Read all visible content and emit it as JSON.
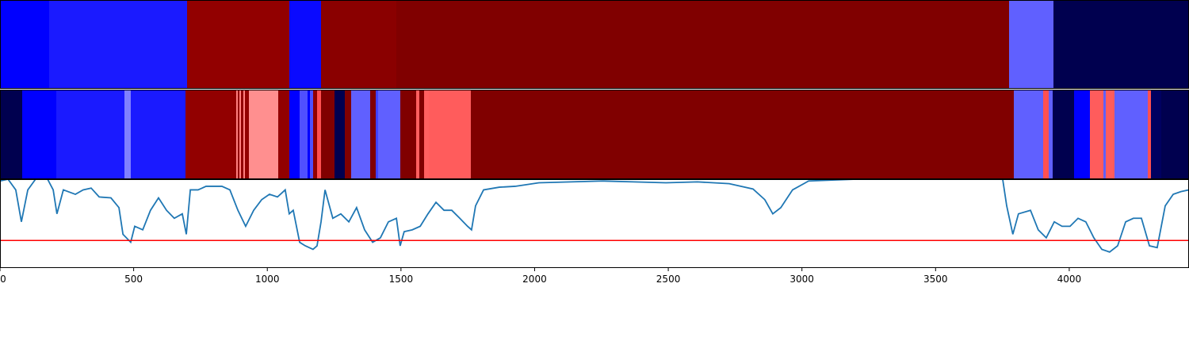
{
  "chart_data": [
    {
      "type": "bands",
      "edges": [
        0,
        184,
        700,
        1082,
        1201,
        1483,
        3775,
        3941,
        4448
      ],
      "colors": [
        "#0000ff",
        "#1a1aff",
        "#920000",
        "#0a0aff",
        "#8a0000",
        "#800000",
        "#6060ff",
        "#00004f"
      ]
    },
    {
      "type": "bands",
      "edges": [
        0,
        83,
        211,
        466,
        489,
        694,
        884,
        890,
        895,
        901,
        910,
        916,
        931,
        1041,
        1082,
        1121,
        1150,
        1159,
        1171,
        1186,
        1201,
        1251,
        1290,
        1314,
        1385,
        1406,
        1414,
        1497,
        1557,
        1569,
        1586,
        1604,
        1761,
        3792,
        3902,
        3923,
        3938,
        4018,
        4077,
        4128,
        4136,
        4169,
        4294,
        4305,
        4344,
        4448
      ],
      "colors": [
        "#00004f",
        "#0000ff",
        "#1a1aff",
        "#8080ff",
        "#1a1aff",
        "#920000",
        "#ff8080",
        "#920000",
        "#ff8080",
        "#920000",
        "#ff8080",
        "#920000",
        "#ff8f8f",
        "#920000",
        "#0000ff",
        "#5050ff",
        "#0000ff",
        "#5050ff",
        "#920000",
        "#ff5050",
        "#800000",
        "#00004f",
        "#800000",
        "#6060ff",
        "#800000",
        "#4040ff",
        "#6060ff",
        "#800000",
        "#ff6060",
        "#800000",
        "#ff6060",
        "#ff5c5c",
        "#800000",
        "#6060ff",
        "#ff5050",
        "#6060ff",
        "#00004f",
        "#0000ff",
        "#ff5c5c",
        "#6060ff",
        "#ff5c5c",
        "#6060ff",
        "#ff5050",
        "#000060",
        "#00004f"
      ]
    },
    {
      "type": "line",
      "xlim": [
        0,
        4448
      ],
      "ylim": [
        0,
        1
      ],
      "xticks": [
        0,
        500,
        1000,
        1500,
        2000,
        2500,
        3000,
        3500,
        4000
      ],
      "color": "#1f77b4",
      "threshold": 0.31,
      "threshold_color": "#ff0000",
      "x": [
        0,
        30,
        59,
        80,
        104,
        133,
        178,
        199,
        213,
        237,
        282,
        311,
        341,
        371,
        415,
        445,
        460,
        489,
        504,
        534,
        563,
        593,
        623,
        652,
        682,
        697,
        712,
        741,
        771,
        830,
        860,
        890,
        919,
        949,
        979,
        1008,
        1038,
        1067,
        1082,
        1097,
        1121,
        1142,
        1171,
        1186,
        1201,
        1216,
        1245,
        1275,
        1305,
        1334,
        1364,
        1394,
        1423,
        1453,
        1483,
        1497,
        1512,
        1542,
        1572,
        1601,
        1631,
        1661,
        1690,
        1720,
        1749,
        1764,
        1779,
        1809,
        1868,
        1927,
        2016,
        2135,
        2254,
        2372,
        2491,
        2609,
        2728,
        2817,
        2861,
        2891,
        2921,
        2965,
        3025,
        3202,
        3558,
        3751,
        3766,
        3789,
        3810,
        3855,
        3884,
        3914,
        3944,
        3973,
        4003,
        4033,
        4062,
        4092,
        4122,
        4151,
        4181,
        4211,
        4240,
        4270,
        4300,
        4329,
        4359,
        4389,
        4418,
        4448
      ],
      "values": [
        0.98,
        1.0,
        0.88,
        0.52,
        0.88,
        1.0,
        1.0,
        0.88,
        0.61,
        0.88,
        0.83,
        0.88,
        0.9,
        0.8,
        0.79,
        0.68,
        0.38,
        0.29,
        0.47,
        0.43,
        0.65,
        0.79,
        0.65,
        0.56,
        0.61,
        0.38,
        0.88,
        0.88,
        0.92,
        0.92,
        0.88,
        0.65,
        0.47,
        0.65,
        0.77,
        0.83,
        0.8,
        0.88,
        0.61,
        0.65,
        0.29,
        0.25,
        0.21,
        0.25,
        0.52,
        0.88,
        0.56,
        0.61,
        0.52,
        0.68,
        0.43,
        0.29,
        0.34,
        0.52,
        0.56,
        0.25,
        0.41,
        0.43,
        0.47,
        0.61,
        0.74,
        0.65,
        0.65,
        0.56,
        0.47,
        0.43,
        0.7,
        0.88,
        0.91,
        0.92,
        0.96,
        0.97,
        0.98,
        0.97,
        0.96,
        0.97,
        0.95,
        0.89,
        0.77,
        0.61,
        0.68,
        0.88,
        0.98,
        1.0,
        1.0,
        1.0,
        0.7,
        0.38,
        0.61,
        0.65,
        0.43,
        0.34,
        0.52,
        0.47,
        0.47,
        0.56,
        0.52,
        0.34,
        0.21,
        0.18,
        0.25,
        0.52,
        0.56,
        0.56,
        0.25,
        0.23,
        0.7,
        0.83,
        0.86,
        0.88
      ]
    }
  ]
}
